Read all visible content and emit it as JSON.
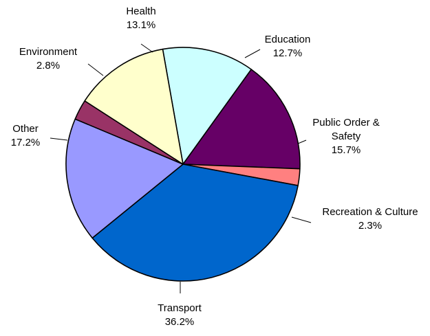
{
  "chart_data": {
    "type": "pie",
    "title": "",
    "start_angle_deg": -10,
    "direction": "clockwise",
    "slices": [
      {
        "label": "Education",
        "value": 12.7,
        "value_label": "12.7%",
        "color": "#ccffff"
      },
      {
        "label": "Public Order & Safety",
        "label_lines": [
          "Public Order &",
          "Safety"
        ],
        "value": 15.7,
        "value_label": "15.7%",
        "color": "#660066"
      },
      {
        "label": "Recreation & Culture",
        "value": 2.3,
        "value_label": "2.3%",
        "color": "#ff8080"
      },
      {
        "label": "Transport",
        "value": 36.2,
        "value_label": "36.2%",
        "color": "#0066cc"
      },
      {
        "label": "Other",
        "value": 17.2,
        "value_label": "17.2%",
        "color": "#9999ff"
      },
      {
        "label": "Environment",
        "value": 2.8,
        "value_label": "2.8%",
        "color": "#993366"
      },
      {
        "label": "Health",
        "value": 13.1,
        "value_label": "13.1%",
        "color": "#ffffcc"
      }
    ]
  }
}
